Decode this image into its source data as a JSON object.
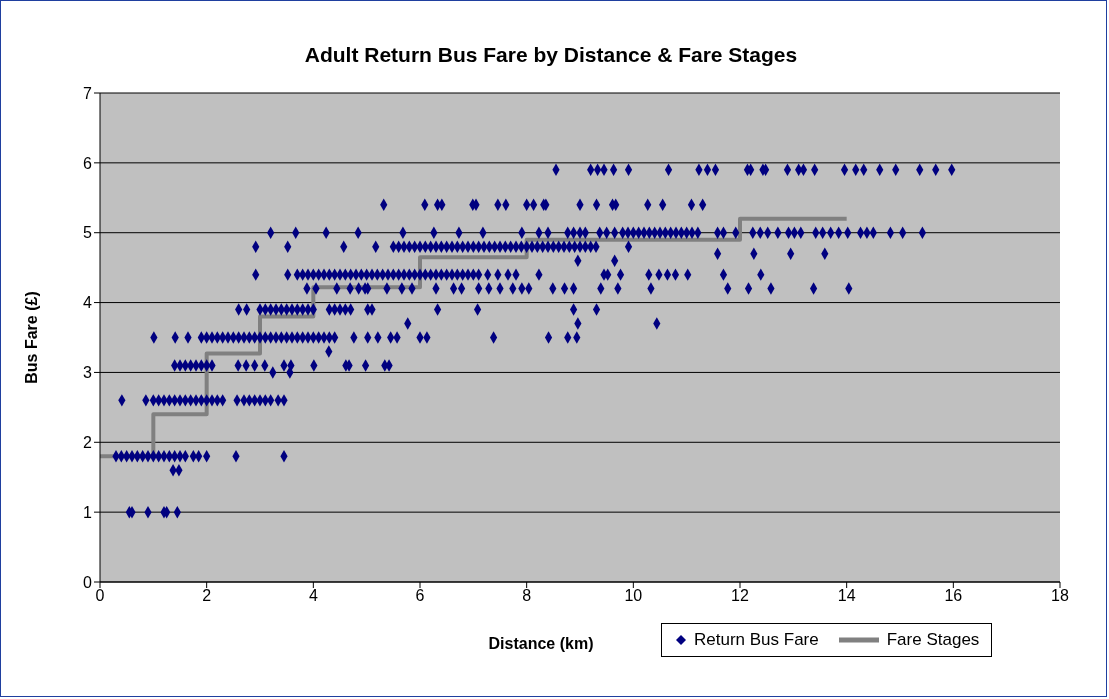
{
  "chart_data": {
    "type": "scatter",
    "title": "Adult Return Bus Fare by Distance & Fare Stages",
    "xlabel": "Distance (km)",
    "ylabel": "Bus Fare (£)",
    "xlim": [
      0,
      18
    ],
    "ylim": [
      0,
      7
    ],
    "xticks": [
      0,
      2,
      4,
      6,
      8,
      10,
      12,
      14,
      16,
      18
    ],
    "yticks": [
      0,
      1,
      2,
      3,
      4,
      5,
      6,
      7
    ],
    "grid": "y",
    "legend": "bottom right",
    "series": [
      {
        "name": "Return Bus Fare",
        "marker": "diamond",
        "color": "#000080",
        "x": [
          0.55,
          0.6,
          0.9,
          1.2,
          1.25,
          1.45,
          1.37,
          1.48,
          0.3,
          0.4,
          0.5,
          0.6,
          0.7,
          0.8,
          0.9,
          1.0,
          1.1,
          1.2,
          1.3,
          1.4,
          1.5,
          1.6,
          1.75,
          1.85,
          2.0,
          2.55,
          3.45,
          0.41,
          0.86,
          1.0,
          1.1,
          1.2,
          1.3,
          1.4,
          1.5,
          1.6,
          1.7,
          1.8,
          1.9,
          2.0,
          2.1,
          2.2,
          2.3,
          2.57,
          2.7,
          2.8,
          2.9,
          3.0,
          3.1,
          3.2,
          3.34,
          3.45,
          3.24,
          3.56,
          1.4,
          1.5,
          1.6,
          1.7,
          1.8,
          1.9,
          2.0,
          2.1,
          2.59,
          2.74,
          2.9,
          3.09,
          3.45,
          3.58,
          4.01,
          4.61,
          4.67,
          4.98,
          5.34,
          5.42,
          4.29,
          1.01,
          1.41,
          1.65,
          1.9,
          2.0,
          2.1,
          2.2,
          2.3,
          2.4,
          2.5,
          2.6,
          2.7,
          2.8,
          2.9,
          3.0,
          3.1,
          3.2,
          3.3,
          3.4,
          3.5,
          3.6,
          3.7,
          3.8,
          3.9,
          4.0,
          4.1,
          4.2,
          4.3,
          4.4,
          4.76,
          5.02,
          5.21,
          5.45,
          5.57,
          6.0,
          6.13,
          7.38,
          8.41,
          8.77,
          8.94,
          5.77,
          8.96,
          10.44,
          2.6,
          2.75,
          3.0,
          3.1,
          3.2,
          3.3,
          3.4,
          3.5,
          3.6,
          3.7,
          3.8,
          3.9,
          4.0,
          4.3,
          4.4,
          4.5,
          4.6,
          4.7,
          5.02,
          5.1,
          6.33,
          7.08,
          8.88,
          9.31,
          3.88,
          4.05,
          4.44,
          4.69,
          4.85,
          4.97,
          5.02,
          5.38,
          5.66,
          5.85,
          6.3,
          6.63,
          6.78,
          7.1,
          7.29,
          7.5,
          7.74,
          7.91,
          8.04,
          8.49,
          8.71,
          8.88,
          9.39,
          9.71,
          10.33,
          11.77,
          12.16,
          12.58,
          13.38,
          14.04,
          2.92,
          3.52,
          3.7,
          3.8,
          3.9,
          4.0,
          4.1,
          4.2,
          4.3,
          4.4,
          4.5,
          4.6,
          4.7,
          4.8,
          4.9,
          5.0,
          5.1,
          5.2,
          5.3,
          5.4,
          5.5,
          5.6,
          5.7,
          5.8,
          5.9,
          6.0,
          6.1,
          6.2,
          6.3,
          6.4,
          6.5,
          6.6,
          6.7,
          6.8,
          6.9,
          7.0,
          7.1,
          7.27,
          7.46,
          7.65,
          7.8,
          8.23,
          9.45,
          9.52,
          9.76,
          10.29,
          10.48,
          10.64,
          10.79,
          11.02,
          11.69,
          12.39,
          8.96,
          9.65,
          11.58,
          12.26,
          12.95,
          13.59,
          2.92,
          3.52,
          4.57,
          5.17,
          5.5,
          5.6,
          5.7,
          5.8,
          5.9,
          6.0,
          6.1,
          6.2,
          6.3,
          6.4,
          6.5,
          6.6,
          6.7,
          6.8,
          6.9,
          7.0,
          7.1,
          7.2,
          7.3,
          7.4,
          7.5,
          7.6,
          7.7,
          7.8,
          7.9,
          8.0,
          8.1,
          8.2,
          8.3,
          8.4,
          8.5,
          8.6,
          8.7,
          8.8,
          8.9,
          9.0,
          9.1,
          9.2,
          9.3,
          9.91,
          3.2,
          3.67,
          4.24,
          4.84,
          5.68,
          6.26,
          6.73,
          7.18,
          7.91,
          8.23,
          8.4,
          8.77,
          8.88,
          9.0,
          9.1,
          9.37,
          9.5,
          9.65,
          9.8,
          9.9,
          10.0,
          10.1,
          10.2,
          10.3,
          10.4,
          10.5,
          10.6,
          10.7,
          10.8,
          10.9,
          11.0,
          11.1,
          11.21,
          11.58,
          11.69,
          11.92,
          12.24,
          12.38,
          12.52,
          12.71,
          12.91,
          13.02,
          13.14,
          13.42,
          13.55,
          13.7,
          13.85,
          14.02,
          14.26,
          14.38,
          14.5,
          14.82,
          15.05,
          15.42,
          5.32,
          6.09,
          6.33,
          6.41,
          6.99,
          7.05,
          7.46,
          7.61,
          8.0,
          8.13,
          8.32,
          8.36,
          9.0,
          9.31,
          9.61,
          9.67,
          10.27,
          10.55,
          11.09,
          11.3,
          8.55,
          9.2,
          9.33,
          9.45,
          9.63,
          9.91,
          10.66,
          11.23,
          11.39,
          11.54,
          12.14,
          12.2,
          12.43,
          12.48,
          12.89,
          13.1,
          13.19,
          13.4,
          13.96,
          14.17,
          14.32,
          14.62,
          14.92,
          15.37,
          15.67,
          15.97
        ],
        "values": [
          1.0,
          1.0,
          1.0,
          1.0,
          1.0,
          1.0,
          1.6,
          1.6,
          1.8,
          1.8,
          1.8,
          1.8,
          1.8,
          1.8,
          1.8,
          1.8,
          1.8,
          1.8,
          1.8,
          1.8,
          1.8,
          1.8,
          1.8,
          1.8,
          1.8,
          1.8,
          1.8,
          2.6,
          2.6,
          2.6,
          2.6,
          2.6,
          2.6,
          2.6,
          2.6,
          2.6,
          2.6,
          2.6,
          2.6,
          2.6,
          2.6,
          2.6,
          2.6,
          2.6,
          2.6,
          2.6,
          2.6,
          2.6,
          2.6,
          2.6,
          2.6,
          2.6,
          3.0,
          3.0,
          3.1,
          3.1,
          3.1,
          3.1,
          3.1,
          3.1,
          3.1,
          3.1,
          3.1,
          3.1,
          3.1,
          3.1,
          3.1,
          3.1,
          3.1,
          3.1,
          3.1,
          3.1,
          3.1,
          3.1,
          3.3,
          3.5,
          3.5,
          3.5,
          3.5,
          3.5,
          3.5,
          3.5,
          3.5,
          3.5,
          3.5,
          3.5,
          3.5,
          3.5,
          3.5,
          3.5,
          3.5,
          3.5,
          3.5,
          3.5,
          3.5,
          3.5,
          3.5,
          3.5,
          3.5,
          3.5,
          3.5,
          3.5,
          3.5,
          3.5,
          3.5,
          3.5,
          3.5,
          3.5,
          3.5,
          3.5,
          3.5,
          3.5,
          3.5,
          3.5,
          3.5,
          3.7,
          3.7,
          3.7,
          3.9,
          3.9,
          3.9,
          3.9,
          3.9,
          3.9,
          3.9,
          3.9,
          3.9,
          3.9,
          3.9,
          3.9,
          3.9,
          3.9,
          3.9,
          3.9,
          3.9,
          3.9,
          3.9,
          3.9,
          3.9,
          3.9,
          3.9,
          3.9,
          4.2,
          4.2,
          4.2,
          4.2,
          4.2,
          4.2,
          4.2,
          4.2,
          4.2,
          4.2,
          4.2,
          4.2,
          4.2,
          4.2,
          4.2,
          4.2,
          4.2,
          4.2,
          4.2,
          4.2,
          4.2,
          4.2,
          4.2,
          4.2,
          4.2,
          4.2,
          4.2,
          4.2,
          4.2,
          4.2,
          4.4,
          4.4,
          4.4,
          4.4,
          4.4,
          4.4,
          4.4,
          4.4,
          4.4,
          4.4,
          4.4,
          4.4,
          4.4,
          4.4,
          4.4,
          4.4,
          4.4,
          4.4,
          4.4,
          4.4,
          4.4,
          4.4,
          4.4,
          4.4,
          4.4,
          4.4,
          4.4,
          4.4,
          4.4,
          4.4,
          4.4,
          4.4,
          4.4,
          4.4,
          4.4,
          4.4,
          4.4,
          4.4,
          4.4,
          4.4,
          4.4,
          4.4,
          4.4,
          4.4,
          4.4,
          4.4,
          4.4,
          4.4,
          4.4,
          4.4,
          4.4,
          4.4,
          4.6,
          4.6,
          4.7,
          4.7,
          4.7,
          4.7,
          4.8,
          4.8,
          4.8,
          4.8,
          4.8,
          4.8,
          4.8,
          4.8,
          4.8,
          4.8,
          4.8,
          4.8,
          4.8,
          4.8,
          4.8,
          4.8,
          4.8,
          4.8,
          4.8,
          4.8,
          4.8,
          4.8,
          4.8,
          4.8,
          4.8,
          4.8,
          4.8,
          4.8,
          4.8,
          4.8,
          4.8,
          4.8,
          4.8,
          4.8,
          4.8,
          4.8,
          4.8,
          4.8,
          4.8,
          4.8,
          4.8,
          4.8,
          4.8,
          4.8,
          5.0,
          5.0,
          5.0,
          5.0,
          5.0,
          5.0,
          5.0,
          5.0,
          5.0,
          5.0,
          5.0,
          5.0,
          5.0,
          5.0,
          5.0,
          5.0,
          5.0,
          5.0,
          5.0,
          5.0,
          5.0,
          5.0,
          5.0,
          5.0,
          5.0,
          5.0,
          5.0,
          5.0,
          5.0,
          5.0,
          5.0,
          5.0,
          5.0,
          5.0,
          5.0,
          5.0,
          5.0,
          5.0,
          5.0,
          5.0,
          5.0,
          5.0,
          5.0,
          5.0,
          5.0,
          5.0,
          5.0,
          5.0,
          5.0,
          5.0,
          5.0,
          5.0,
          5.0,
          5.0,
          5.4,
          5.4,
          5.4,
          5.4,
          5.4,
          5.4,
          5.4,
          5.4,
          5.4,
          5.4,
          5.4,
          5.4,
          5.4,
          5.4,
          5.4,
          5.4,
          5.4,
          5.4,
          5.4,
          5.4,
          5.9,
          5.9,
          5.9,
          5.9,
          5.9,
          5.9,
          5.9,
          5.9,
          5.9,
          5.9,
          5.9,
          5.9,
          5.9,
          5.9,
          5.9,
          5.9,
          5.9,
          5.9,
          5.9,
          5.9,
          5.9,
          5.9,
          5.9,
          5.9,
          5.9,
          5.9
        ]
      },
      {
        "name": "Fare Stages",
        "type": "step",
        "color": "#808080",
        "x": [
          0,
          1,
          2,
          3,
          4,
          6,
          8,
          12,
          14
        ],
        "values": [
          1.8,
          2.4,
          3.27,
          3.8,
          4.22,
          4.65,
          4.9,
          5.2,
          5.2
        ]
      }
    ]
  }
}
